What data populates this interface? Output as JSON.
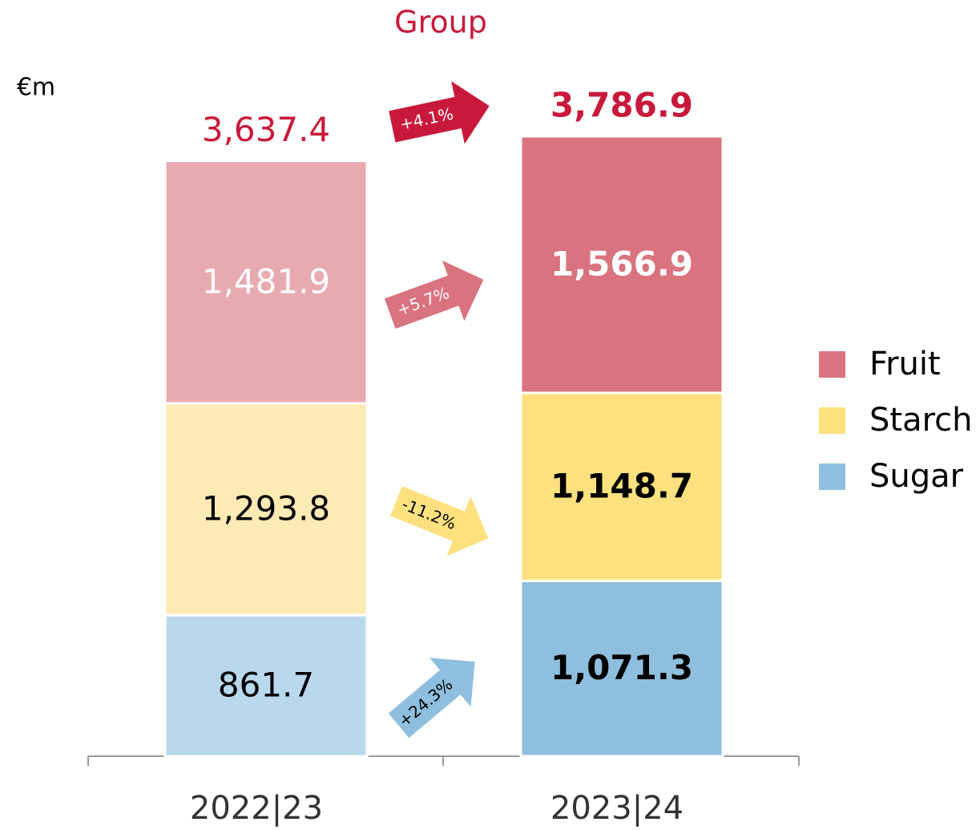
{
  "chart_data": {
    "type": "stacked_bar",
    "title": "Group",
    "unit_label": "€m",
    "categories": [
      "2022|23",
      "2023|24"
    ],
    "series": [
      {
        "name": "Sugar",
        "color": "#8fbfde",
        "colors": [
          "#bad8ec",
          "#8fbfde"
        ],
        "values": [
          861.7,
          1071.3
        ],
        "value_labels": [
          "861.7",
          "1,071.3"
        ]
      },
      {
        "name": "Starch",
        "color": "#fde17e",
        "colors": [
          "#feeab3",
          "#fde17e"
        ],
        "values": [
          1293.8,
          1148.7
        ],
        "value_labels": [
          "1,293.8",
          "1,148.7"
        ]
      },
      {
        "name": "Fruit",
        "color": "#d9737f",
        "colors": [
          "#e8aab1",
          "#d9737f"
        ],
        "values": [
          1481.9,
          1566.9
        ],
        "value_labels": [
          "1,481.9",
          "1,566.9"
        ]
      }
    ],
    "totals": [
      3637.4,
      3786.9
    ],
    "total_labels": [
      "3,637.4",
      "3,786.9"
    ],
    "total_color": "#c8193c",
    "annotations": [
      "+24.3%",
      "-11.2%",
      "+5.7%",
      "+4.1%"
    ],
    "legend": "right"
  }
}
